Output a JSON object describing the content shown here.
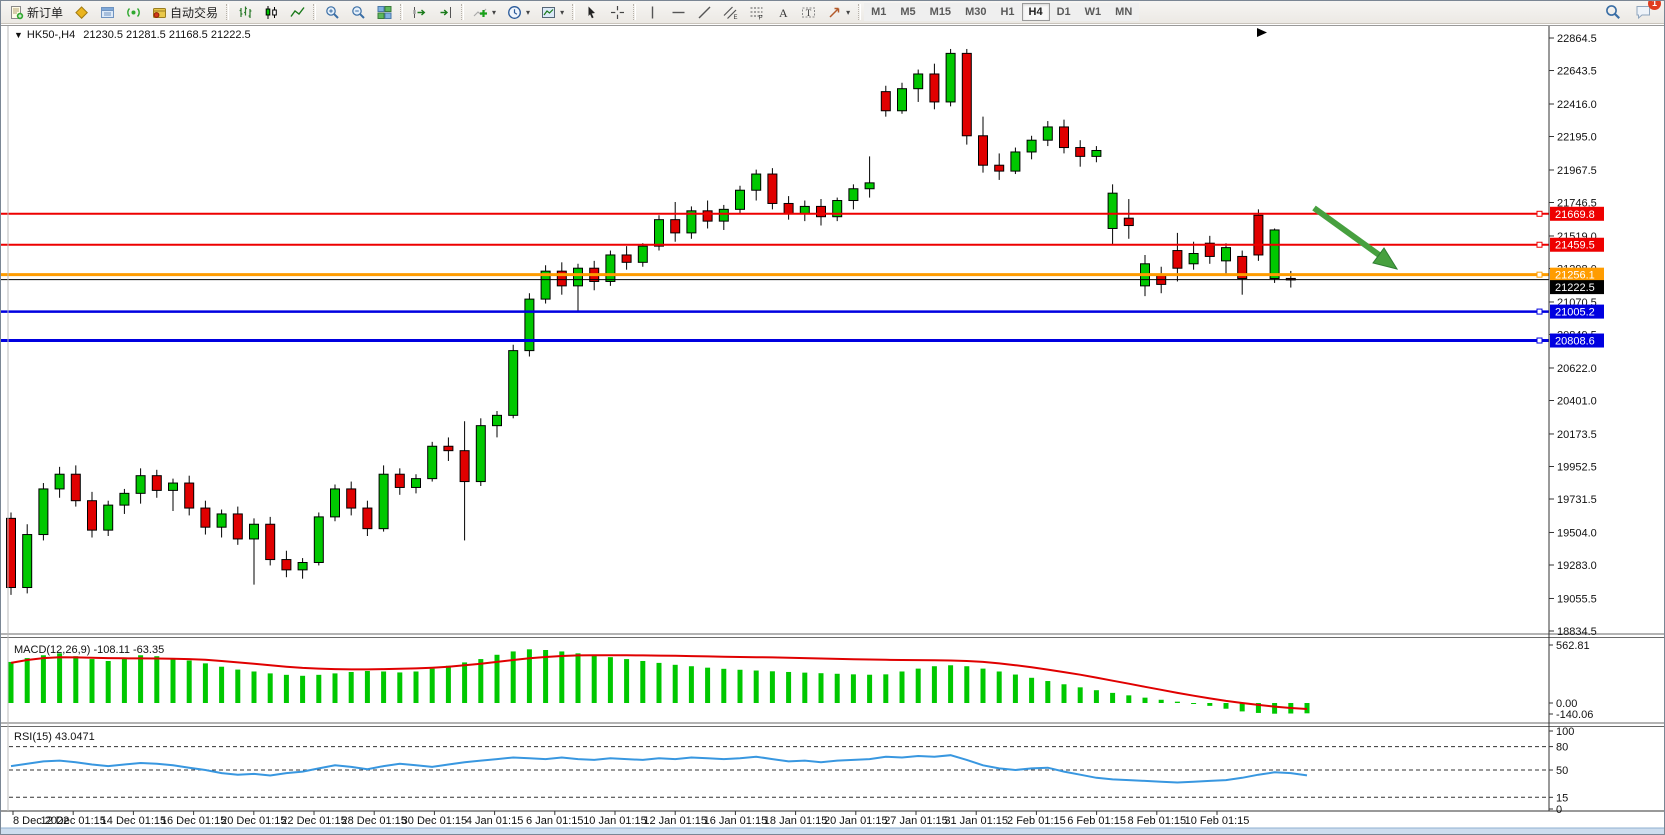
{
  "toolbar": {
    "groups": [
      {
        "items": [
          {
            "name": "new-order-button",
            "icon": "new-order-icon",
            "label": "新订单"
          },
          {
            "name": "market-watch-button",
            "icon": "market-watch-icon"
          },
          {
            "name": "data-window-button",
            "icon": "data-window-icon"
          },
          {
            "name": "signals-button",
            "icon": "signal-icon"
          },
          {
            "name": "auto-trading-button",
            "icon": "auto-trading-icon",
            "label": "自动交易"
          }
        ]
      },
      {
        "items": [
          {
            "name": "bar-chart-button",
            "icon": "bar-chart-icon"
          },
          {
            "name": "candlestick-button",
            "icon": "candlestick-icon"
          },
          {
            "name": "line-chart-button",
            "icon": "line-chart-icon"
          }
        ]
      },
      {
        "items": [
          {
            "name": "zoom-in-button",
            "icon": "zoom-in-icon"
          },
          {
            "name": "zoom-out-button",
            "icon": "zoom-out-icon"
          },
          {
            "name": "tile-windows-button",
            "icon": "tile-windows-icon"
          }
        ]
      },
      {
        "items": [
          {
            "name": "auto-scroll-button",
            "icon": "auto-scroll-icon"
          },
          {
            "name": "chart-shift-button",
            "icon": "chart-shift-icon"
          }
        ]
      },
      {
        "items": [
          {
            "name": "indicators-button",
            "icon": "indicators-icon",
            "dropdown": true
          },
          {
            "name": "periods-button",
            "icon": "clock-icon",
            "dropdown": true
          },
          {
            "name": "templates-button",
            "icon": "templates-icon",
            "dropdown": true
          }
        ]
      },
      {
        "items": [
          {
            "name": "cursor-button",
            "icon": "cursor-icon"
          },
          {
            "name": "crosshair-button",
            "icon": "crosshair-icon"
          }
        ]
      },
      {
        "items": [
          {
            "name": "vertical-line-button",
            "icon": "vertical-line-icon"
          },
          {
            "name": "horizontal-line-button",
            "icon": "horizontal-line-icon"
          },
          {
            "name": "trendline-button",
            "icon": "trendline-icon"
          },
          {
            "name": "channel-button",
            "icon": "channel-icon"
          },
          {
            "name": "fibonacci-button",
            "icon": "fibonacci-icon"
          },
          {
            "name": "text-button",
            "icon": "text-icon"
          },
          {
            "name": "text-label-button",
            "icon": "text-label-icon"
          },
          {
            "name": "arrows-button",
            "icon": "arrow-shapes-icon",
            "dropdown": true
          }
        ]
      }
    ],
    "timeframes": [
      {
        "label": "M1"
      },
      {
        "label": "M5"
      },
      {
        "label": "M15"
      },
      {
        "label": "M30"
      },
      {
        "label": "H1"
      },
      {
        "label": "H4",
        "active": true
      },
      {
        "label": "D1"
      },
      {
        "label": "W1"
      },
      {
        "label": "MN"
      }
    ],
    "right": [
      {
        "name": "search-button",
        "icon": "search-icon"
      },
      {
        "name": "chat-button",
        "icon": "chat-icon",
        "badge": "1"
      }
    ]
  },
  "chart": {
    "title": {
      "symbol": "HK50-,H4",
      "ohlc": "21230.5 21281.5 21168.5 21222.5"
    },
    "price_axis_ticks": [
      22864.5,
      22643.5,
      22416.0,
      22195.0,
      21967.5,
      21746.5,
      21519.0,
      21298.0,
      21070.5,
      20849.5,
      20622.0,
      20401.0,
      20173.5,
      19952.5,
      19731.5,
      19504.0,
      19283.0,
      19055.5,
      18834.5
    ],
    "hlines": [
      {
        "label": "21669.8",
        "price": 21669.8,
        "color": "#ee0000",
        "width": 2
      },
      {
        "label": "21459.5",
        "price": 21459.5,
        "color": "#ee0000",
        "width": 2
      },
      {
        "label": "21256.1",
        "price": 21256.1,
        "color": "#ff9c00",
        "width": 3
      },
      {
        "label": "21005.2",
        "price": 21005.2,
        "color": "#0000e0",
        "width": 2.5
      },
      {
        "label": "20808.6",
        "price": 20808.6,
        "color": "#0000e0",
        "width": 3
      }
    ],
    "current_price": {
      "label": "21222.5",
      "price": 21222.5,
      "color": "#000000"
    },
    "colors": {
      "bull": "#00c800",
      "bear": "#e00000",
      "wick": "#000000",
      "axis_text": "#111111"
    },
    "candles": [
      [
        19600,
        19640,
        19080,
        19130
      ],
      [
        19130,
        19560,
        19090,
        19490
      ],
      [
        19490,
        19840,
        19450,
        19800
      ],
      [
        19800,
        19950,
        19740,
        19900
      ],
      [
        19900,
        19960,
        19680,
        19720
      ],
      [
        19720,
        19780,
        19470,
        19520
      ],
      [
        19520,
        19720,
        19480,
        19690
      ],
      [
        19690,
        19800,
        19630,
        19770
      ],
      [
        19770,
        19940,
        19700,
        19890
      ],
      [
        19890,
        19930,
        19740,
        19790
      ],
      [
        19790,
        19870,
        19650,
        19840
      ],
      [
        19840,
        19890,
        19620,
        19670
      ],
      [
        19670,
        19720,
        19490,
        19540
      ],
      [
        19540,
        19660,
        19470,
        19630
      ],
      [
        19630,
        19680,
        19420,
        19460
      ],
      [
        19460,
        19600,
        19150,
        19560
      ],
      [
        19560,
        19610,
        19280,
        19320
      ],
      [
        19320,
        19380,
        19200,
        19250
      ],
      [
        19250,
        19330,
        19190,
        19300
      ],
      [
        19300,
        19640,
        19280,
        19610
      ],
      [
        19610,
        19830,
        19580,
        19800
      ],
      [
        19800,
        19850,
        19620,
        19670
      ],
      [
        19670,
        19720,
        19480,
        19530
      ],
      [
        19530,
        19960,
        19510,
        19900
      ],
      [
        19900,
        19940,
        19760,
        19810
      ],
      [
        19810,
        19900,
        19770,
        19870
      ],
      [
        19870,
        20120,
        19850,
        20090
      ],
      [
        20090,
        20150,
        19990,
        20060
      ],
      [
        20060,
        20260,
        19450,
        19850
      ],
      [
        19850,
        20280,
        19820,
        20230
      ],
      [
        20230,
        20330,
        20150,
        20300
      ],
      [
        20300,
        20780,
        20280,
        20740
      ],
      [
        20740,
        21130,
        20700,
        21090
      ],
      [
        21090,
        21320,
        21060,
        21280
      ],
      [
        21280,
        21340,
        21120,
        21180
      ],
      [
        21180,
        21330,
        21000,
        21300
      ],
      [
        21300,
        21350,
        21150,
        21210
      ],
      [
        21210,
        21420,
        21180,
        21390
      ],
      [
        21390,
        21450,
        21290,
        21340
      ],
      [
        21340,
        21470,
        21310,
        21450
      ],
      [
        21450,
        21660,
        21420,
        21630
      ],
      [
        21630,
        21750,
        21480,
        21540
      ],
      [
        21540,
        21720,
        21500,
        21690
      ],
      [
        21690,
        21760,
        21570,
        21620
      ],
      [
        21620,
        21730,
        21560,
        21700
      ],
      [
        21700,
        21860,
        21670,
        21830
      ],
      [
        21830,
        21970,
        21760,
        21940
      ],
      [
        21940,
        21980,
        21700,
        21740
      ],
      [
        21740,
        21790,
        21630,
        21670
      ],
      [
        21670,
        21760,
        21620,
        21720
      ],
      [
        21720,
        21770,
        21590,
        21650
      ],
      [
        21650,
        21780,
        21620,
        21760
      ],
      [
        21760,
        21870,
        21700,
        21840
      ],
      [
        21840,
        22060,
        21780,
        21880
      ],
      [
        22500,
        22540,
        22330,
        22370
      ],
      [
        22370,
        22560,
        22350,
        22520
      ],
      [
        22520,
        22650,
        22430,
        22620
      ],
      [
        22620,
        22690,
        22380,
        22430
      ],
      [
        22430,
        22790,
        22400,
        22760
      ],
      [
        22760,
        22790,
        22140,
        22200
      ],
      [
        22200,
        22330,
        21950,
        22000
      ],
      [
        22000,
        22080,
        21900,
        21960
      ],
      [
        21960,
        22120,
        21940,
        22090
      ],
      [
        22090,
        22200,
        22040,
        22170
      ],
      [
        22170,
        22300,
        22130,
        22260
      ],
      [
        22260,
        22310,
        22080,
        22120
      ],
      [
        22120,
        22170,
        21990,
        22060
      ],
      [
        22060,
        22130,
        22020,
        22100
      ],
      [
        21570,
        21870,
        21460,
        21810
      ],
      [
        21640,
        21770,
        21500,
        21590
      ],
      [
        21180,
        21390,
        21110,
        21330
      ],
      [
        21250,
        21310,
        21130,
        21190
      ],
      [
        21420,
        21540,
        21210,
        21300
      ],
      [
        21330,
        21480,
        21290,
        21400
      ],
      [
        21470,
        21520,
        21330,
        21380
      ],
      [
        21350,
        21470,
        21250,
        21440
      ],
      [
        21380,
        21420,
        21120,
        21230
      ],
      [
        21660,
        21700,
        21350,
        21390
      ],
      [
        21230,
        21570,
        21200,
        21560
      ],
      [
        21230.5,
        21281.5,
        21168.5,
        21222.5
      ]
    ],
    "dates": [
      "8 Dec 2022",
      "12 Dec 01:15",
      "14 Dec 01:15",
      "16 Dec 01:15",
      "20 Dec 01:15",
      "22 Dec 01:15",
      "28 Dec 01:15",
      "30 Dec 01:15",
      "4 Jan 01:15",
      "6 Jan 01:15",
      "10 Jan 01:15",
      "12 Jan 01:15",
      "16 Jan 01:15",
      "18 Jan 01:15",
      "20 Jan 01:15",
      "27 Jan 01:15",
      "31 Jan 01:15",
      "2 Feb 01:15",
      "6 Feb 01:15",
      "8 Feb 01:15",
      "10 Feb 01:15"
    ],
    "arrow": {
      "color": "#47a03f",
      "edge": "#2e7d32"
    }
  },
  "macd": {
    "label": "MACD(12,26,9) -108.11 -63.35",
    "scale_labels": [
      "562.81",
      "0.00",
      "-140.06"
    ],
    "colors": {
      "histogram": "#00c800",
      "signal": "#e00000"
    },
    "histogram": [
      430,
      470,
      500,
      520,
      490,
      460,
      440,
      475,
      500,
      490,
      470,
      445,
      415,
      380,
      350,
      330,
      310,
      295,
      285,
      295,
      310,
      325,
      335,
      330,
      320,
      330,
      360,
      390,
      425,
      460,
      505,
      540,
      562,
      555,
      540,
      520,
      500,
      480,
      460,
      440,
      420,
      400,
      385,
      370,
      358,
      348,
      340,
      332,
      325,
      318,
      312,
      306,
      300,
      296,
      300,
      330,
      360,
      385,
      395,
      385,
      360,
      330,
      298,
      264,
      230,
      196,
      164,
      134,
      106,
      80,
      56,
      34,
      14,
      -4,
      -30,
      -60,
      -88,
      -104,
      -112,
      -110,
      -108
    ],
    "signal": [
      420,
      450,
      470,
      480,
      478,
      474,
      470,
      468,
      467,
      466,
      464,
      460,
      452,
      440,
      425,
      410,
      395,
      380,
      368,
      360,
      355,
      352,
      352,
      355,
      358,
      362,
      370,
      380,
      395,
      412,
      430,
      450,
      468,
      482,
      492,
      498,
      500,
      500,
      499,
      498,
      496,
      494,
      491,
      488,
      485,
      482,
      480,
      477,
      474,
      470,
      466,
      462,
      458,
      455,
      452,
      450,
      449,
      448,
      445,
      440,
      430,
      415,
      396,
      374,
      350,
      324,
      296,
      266,
      234,
      202,
      170,
      138,
      106,
      76,
      48,
      22,
      0,
      -20,
      -38,
      -52,
      -63
    ]
  },
  "rsi": {
    "label": "RSI(15) 43.0471",
    "scale_labels": [
      "100",
      "80",
      "50",
      "15",
      "0"
    ],
    "levels": [
      80,
      50,
      15
    ],
    "color": "#3897e0",
    "series": [
      55,
      58,
      61,
      62,
      60,
      57,
      55,
      57,
      59,
      58,
      56,
      53,
      50,
      46,
      44,
      45,
      43,
      46,
      48,
      52,
      56,
      54,
      51,
      55,
      58,
      56,
      54,
      57,
      60,
      62,
      64,
      66,
      65,
      64,
      66,
      64,
      63,
      65,
      64,
      63,
      65,
      64,
      66,
      65,
      64,
      65,
      67,
      64,
      61,
      62,
      60,
      62,
      63,
      64,
      67,
      66,
      68,
      67,
      69,
      63,
      56,
      52,
      50,
      52,
      53,
      48,
      44,
      40,
      38,
      37,
      36,
      35,
      34,
      35,
      36,
      37,
      40,
      44,
      47,
      46,
      43.05
    ]
  }
}
